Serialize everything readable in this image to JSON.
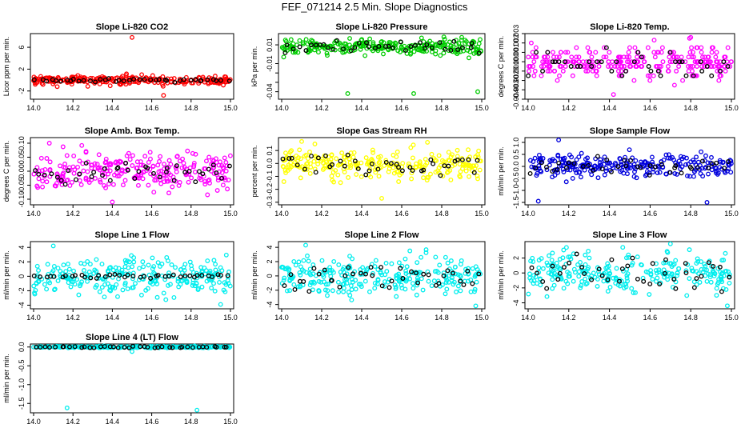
{
  "page": {
    "title": "FEF_071214  2.5 Min. Slope Diagnostics"
  },
  "colors": {
    "overlay": "#000000"
  },
  "chart_data": [
    {
      "type": "scatter",
      "title": "Slope Li-820 CO2",
      "ylabel": "Licor ppm per min.",
      "xlim": [
        14.0,
        15.0
      ],
      "ylim": [
        -3.5,
        8.5
      ],
      "yticks": [
        -2,
        2,
        6
      ],
      "yticklabels": [
        "-2",
        "2",
        "6"
      ],
      "xticks": [
        "14.0",
        "14.2",
        "14.4",
        "14.6",
        "14.8",
        "15.0"
      ],
      "color": "#ff0000",
      "center": 0,
      "spread": 0.4,
      "outliers": [
        [
          14.5,
          7.8
        ],
        [
          14.66,
          -2.8
        ],
        [
          14.12,
          -1.2
        ]
      ],
      "overlay_spread": 0.15
    },
    {
      "type": "scatter",
      "title": "Slope Li-820 Pressure",
      "ylabel": "kPa per min.",
      "xlim": [
        14.0,
        15.0
      ],
      "ylim": [
        -0.048,
        0.022
      ],
      "yticks": [
        -0.04,
        -0.03,
        -0.02,
        -0.01,
        0.01
      ],
      "yticklabels": [
        "-0.04",
        "",
        "",
        "-0.01",
        "0.01"
      ],
      "xticks": [
        "14.0",
        "14.2",
        "14.4",
        "14.6",
        "14.8",
        "15.0"
      ],
      "color": "#00cc00",
      "center": 0.008,
      "spread": 0.004,
      "outliers": [
        [
          14.33,
          -0.042
        ],
        [
          14.66,
          -0.042
        ],
        [
          14.98,
          -0.04
        ],
        [
          14.01,
          -0.003
        ],
        [
          14.9,
          0.018
        ]
      ],
      "overlay_spread": 0.003
    },
    {
      "type": "scatter",
      "title": "Slope Li-820 Temp.",
      "ylabel": "degrees C per min.",
      "xlim": [
        14.0,
        15.0
      ],
      "ylim": [
        -0.004,
        0.003
      ],
      "yticks": [
        -0.004,
        -0.003,
        -0.002,
        -0.001,
        0.0,
        0.001,
        0.002,
        0.003
      ],
      "yticklabels": [
        "-0.004",
        "-0.003",
        "-0.002",
        "-0.001",
        "0.000",
        "0.001",
        "0.002",
        "0.003"
      ],
      "xticks": [
        "14.0",
        "14.2",
        "14.4",
        "14.6",
        "14.8",
        "15.0"
      ],
      "color": "#ff00ff",
      "center": 0,
      "spread": 0.0008,
      "outliers": [
        [
          14.42,
          -0.0035
        ],
        [
          14.72,
          -0.0025
        ],
        [
          14.8,
          0.0026
        ],
        [
          14.62,
          0.0023
        ]
      ],
      "overlay_spread": 0.0008,
      "quantized": 0.0005
    },
    {
      "type": "scatter",
      "title": "Slope Amb. Box Temp.",
      "ylabel": "degrees C per min.",
      "xlim": [
        14.0,
        15.0
      ],
      "ylim": [
        -0.12,
        0.12
      ],
      "yticks": [
        -0.1,
        -0.05,
        0.0,
        0.05,
        0.1
      ],
      "yticklabels": [
        "-0.10",
        "-0.05",
        "0.00",
        "0.05",
        "0.10"
      ],
      "xticks": [
        "14.0",
        "14.2",
        "14.4",
        "14.6",
        "14.8",
        "15.0"
      ],
      "color": "#ff00ff",
      "center": 0,
      "spread": 0.035,
      "outliers": [
        [
          14.08,
          0.1
        ],
        [
          14.4,
          -0.11
        ]
      ],
      "overlay_spread": 0.02
    },
    {
      "type": "scatter",
      "title": "Slope Gas Stream RH",
      "ylabel": "percent per min.",
      "xlim": [
        14.0,
        15.0
      ],
      "ylim": [
        -0.32,
        0.2
      ],
      "yticks": [
        -0.3,
        -0.2,
        -0.1,
        0.0,
        0.1
      ],
      "yticklabels": [
        "-0.3",
        "-0.2",
        "-0.1",
        "0.0",
        "0.1"
      ],
      "xticks": [
        "14.0",
        "14.2",
        "14.4",
        "14.6",
        "14.8",
        "15.0"
      ],
      "color": "#ffff00",
      "center": 0,
      "spread": 0.06,
      "outliers": [
        [
          14.5,
          -0.27
        ],
        [
          14.1,
          0.17
        ]
      ],
      "overlay_spread": 0.04
    },
    {
      "type": "scatter",
      "title": "Slope Sample Flow",
      "ylabel": "ml/min per min.",
      "xlim": [
        14.0,
        15.0
      ],
      "ylim": [
        -1.6,
        1.2
      ],
      "yticks": [
        -1.5,
        -1.0,
        -0.5,
        0.0,
        0.5,
        1.0
      ],
      "yticklabels": [
        "-1.5",
        "-1.0",
        "-0.5",
        "0.0",
        "0.5",
        "1.0"
      ],
      "xticks": [
        "14.0",
        "14.2",
        "14.4",
        "14.6",
        "14.8",
        "15.0"
      ],
      "color": "#0000dd",
      "center": 0,
      "spread": 0.25,
      "outliers": [
        [
          14.15,
          1.1
        ],
        [
          14.05,
          -1.45
        ],
        [
          14.88,
          -1.5
        ]
      ],
      "overlay_spread": 0.15
    },
    {
      "type": "scatter",
      "title": "Slope Line 1 Flow",
      "ylabel": "ml/min per min.",
      "xlim": [
        14.0,
        15.0
      ],
      "ylim": [
        -4.5,
        4.8
      ],
      "yticks": [
        -4,
        -2,
        0,
        2,
        4
      ],
      "yticklabels": [
        "-4",
        "-2",
        "0",
        "2",
        "4"
      ],
      "xticks": [
        "14.0",
        "14.2",
        "14.4",
        "14.6",
        "14.8",
        "15.0"
      ],
      "color": "#00eeee",
      "center": 0,
      "spread": 1.3,
      "outliers": [
        [
          14.95,
          -3.9
        ],
        [
          14.1,
          4.2
        ]
      ],
      "overlay_spread": 0.15
    },
    {
      "type": "scatter",
      "title": "Slope Line 2 Flow",
      "ylabel": "ml/min per min.",
      "xlim": [
        14.0,
        15.0
      ],
      "ylim": [
        -4.6,
        4.8
      ],
      "yticks": [
        -4,
        -2,
        0,
        2,
        4
      ],
      "yticklabels": [
        "-4",
        "-2",
        "0",
        "2",
        "4"
      ],
      "xticks": [
        "14.0",
        "14.2",
        "14.4",
        "14.6",
        "14.8",
        "15.0"
      ],
      "color": "#00eeee",
      "center": 0,
      "spread": 1.3,
      "outliers": [
        [
          14.97,
          -4.2
        ],
        [
          14.12,
          4.3
        ]
      ],
      "overlay_spread": 1.0
    },
    {
      "type": "scatter",
      "title": "Slope Line 3 Flow",
      "ylabel": "ml/min per min.",
      "xlim": [
        14.0,
        15.0
      ],
      "ylim": [
        -4.8,
        4.2
      ],
      "yticks": [
        -4,
        -2,
        0,
        2
      ],
      "yticklabels": [
        "-4",
        "-2",
        "0",
        "2"
      ],
      "xticks": [
        "14.0",
        "14.2",
        "14.4",
        "14.6",
        "14.8",
        "15.0"
      ],
      "color": "#00eeee",
      "center": 0,
      "spread": 1.4,
      "outliers": [
        [
          14.98,
          -4.4
        ],
        [
          14.7,
          3.9
        ]
      ],
      "overlay_spread": 1.2
    },
    {
      "type": "scatter",
      "title": "Slope Line 4 (LT) Flow",
      "ylabel": "ml/min per min.",
      "xlim": [
        14.0,
        15.0
      ],
      "ylim": [
        -1.75,
        0.08
      ],
      "yticks": [
        -1.5,
        -1.0,
        -0.5,
        0.0
      ],
      "yticklabels": [
        "-1.5",
        "-1.0",
        "-0.5",
        "0.0"
      ],
      "xticks": [
        "14.0",
        "14.2",
        "14.4",
        "14.6",
        "14.8",
        "15.0"
      ],
      "color": "#00eeee",
      "center": 0,
      "spread": 0.01,
      "outliers": [
        [
          14.17,
          -1.62
        ],
        [
          14.83,
          -1.68
        ],
        [
          14.5,
          -0.12
        ]
      ],
      "overlay_spread": 0.01
    }
  ]
}
